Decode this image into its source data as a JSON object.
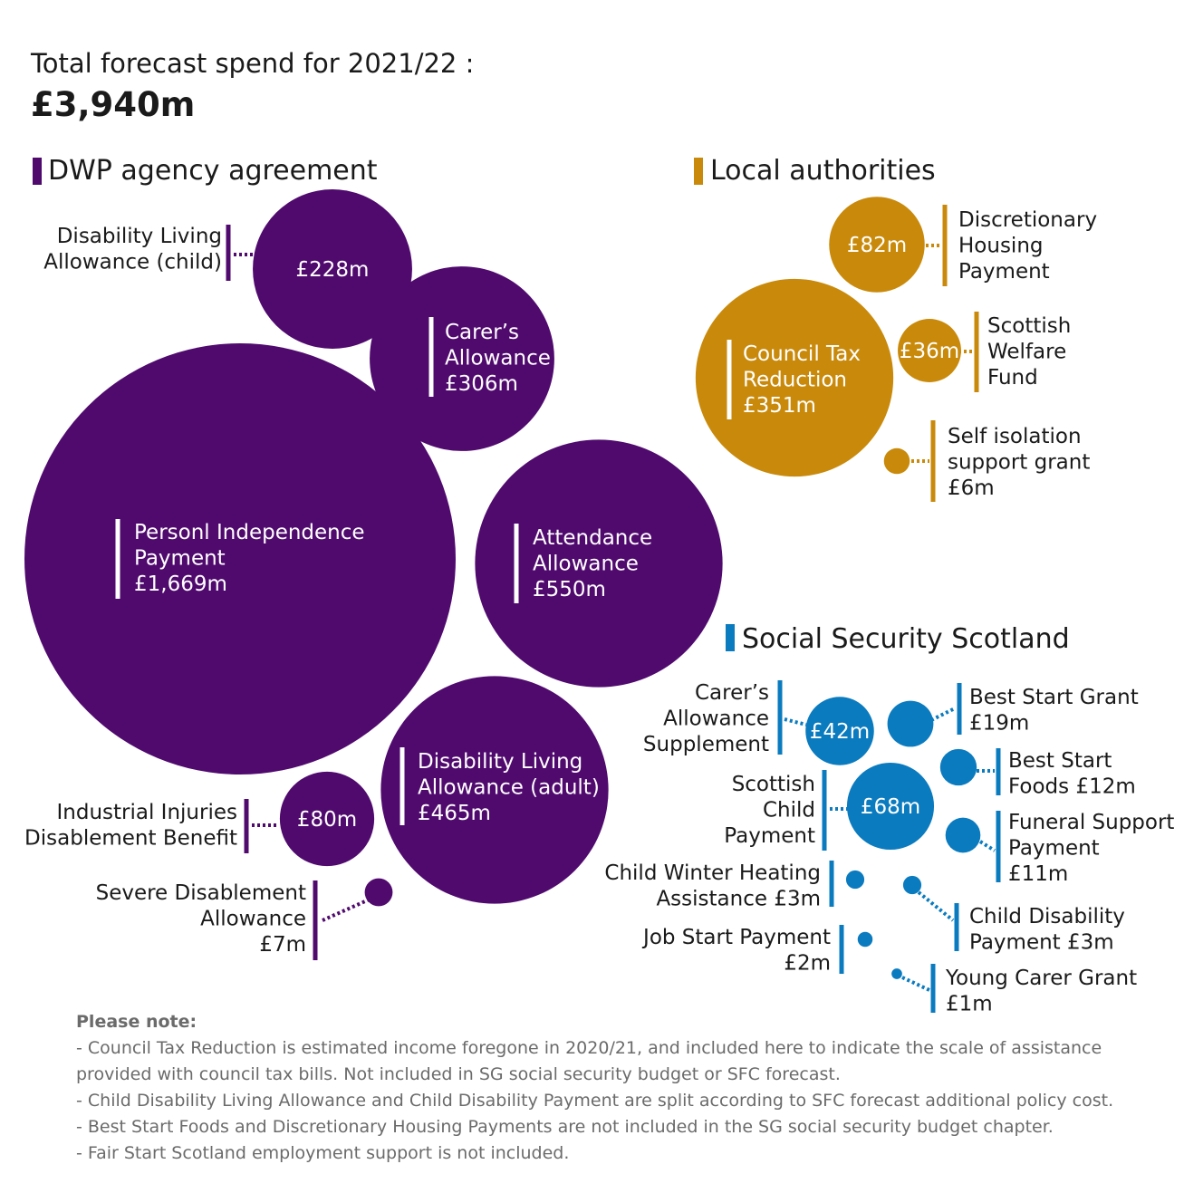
{
  "header": {
    "title": "Total forecast spend for 2021/22 :",
    "total": "£3,940m"
  },
  "colors": {
    "dwp": "#500a6e",
    "local": "#c98a0b",
    "sss": "#0b7bbf"
  },
  "chart_data": {
    "type": "bubble",
    "unit": "£m",
    "title": "Total forecast spend for 2021/22 :",
    "total": 3940,
    "groups": [
      {
        "key": "dwp",
        "name": "DWP agency agreement",
        "items": [
          {
            "name": "Personl Independence Payment",
            "label": [
              "Personl Independence",
              "Payment",
              "£1,669m"
            ],
            "value": 1669
          },
          {
            "name": "Attendance Allowance",
            "label": [
              "Attendance",
              "Allowance",
              "£550m"
            ],
            "value": 550
          },
          {
            "name": "Disability Living Allowance (adult)",
            "label": [
              "Disability Living",
              "Allowance (adult)",
              "£465m"
            ],
            "value": 465
          },
          {
            "name": "Carer's Allowance",
            "label": [
              "Carer’s",
              "Allowance",
              "£306m"
            ],
            "value": 306
          },
          {
            "name": "Disability Living Allowance (child)",
            "label": [
              "Disability Living",
              "Allowance (child)"
            ],
            "inner": "£228m",
            "value": 228
          },
          {
            "name": "Industrial Injuries Disablement Benefit",
            "label": [
              "Industrial Injuries",
              "Disablement Benefit"
            ],
            "inner": "£80m",
            "value": 80
          },
          {
            "name": "Severe Disablement Allowance",
            "label": [
              "Severe Disablement",
              "Allowance",
              "£7m"
            ],
            "value": 7
          }
        ]
      },
      {
        "key": "local",
        "name": "Local authorities",
        "items": [
          {
            "name": "Council Tax Reduction",
            "label": [
              "Council Tax",
              "Reduction",
              "£351m"
            ],
            "value": 351
          },
          {
            "name": "Discretionary Housing Payment",
            "label": [
              "Discretionary",
              "Housing",
              "Payment"
            ],
            "inner": "£82m",
            "value": 82
          },
          {
            "name": "Scottish Welfare Fund",
            "label": [
              "Scottish",
              "Welfare",
              "Fund"
            ],
            "inner": "£36m",
            "value": 36
          },
          {
            "name": "Self isolation support grant",
            "label": [
              "Self isolation",
              "support grant",
              "£6m"
            ],
            "value": 6
          }
        ]
      },
      {
        "key": "sss",
        "name": "Social Security Scotland",
        "items": [
          {
            "name": "Scottish Child Payment",
            "label": [
              "Scottish",
              "Child",
              "Payment"
            ],
            "inner": "£68m",
            "value": 68
          },
          {
            "name": "Carer's Allowance Supplement",
            "label": [
              "Carer’s",
              "Allowance",
              "Supplement"
            ],
            "inner": "£42m",
            "value": 42
          },
          {
            "name": "Best Start Grant",
            "label": [
              "Best Start Grant",
              "£19m"
            ],
            "value": 19
          },
          {
            "name": "Best Start Foods",
            "label": [
              "Best Start",
              "Foods £12m"
            ],
            "value": 12
          },
          {
            "name": "Funeral Support Payment",
            "label": [
              "Funeral Support",
              "Payment",
              "£11m"
            ],
            "value": 11
          },
          {
            "name": "Child Winter Heating Assistance",
            "label": [
              "Child Winter Heating",
              "Assistance £3m"
            ],
            "value": 3
          },
          {
            "name": "Child Disability Payment",
            "label": [
              "Child Disability",
              "Payment £3m"
            ],
            "value": 3
          },
          {
            "name": "Job Start Payment",
            "label": [
              "Job Start Payment",
              "£2m"
            ],
            "value": 2
          },
          {
            "name": "Young Carer Grant",
            "label": [
              "Young Carer Grant",
              "£1m"
            ],
            "value": 1
          }
        ]
      }
    ]
  },
  "notes": {
    "heading": "Please note:",
    "lines": [
      "- Council Tax Reduction is estimated income foregone in 2020/21, and included here to indicate the scale of assistance",
      "provided with council tax bills. Not included in SG social security budget or SFC forecast.",
      "- Child Disability Living Allowance and Child Disability Payment are split according to SFC forecast additional policy cost.",
      "- Best Start Foods and Discretionary Housing Payments are not included in the SG social security budget chapter.",
      "- Fair Start Scotland employment support is not included."
    ]
  }
}
